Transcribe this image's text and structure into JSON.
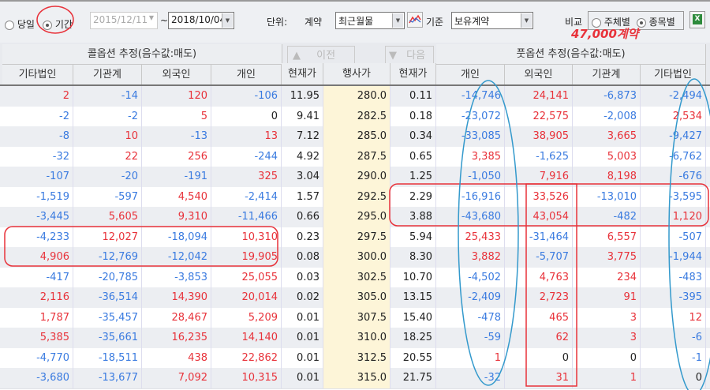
{
  "toolbar": {
    "today_label": "당일",
    "period_label": "기간",
    "start_date": "2015/12/11",
    "tilde": "~",
    "end_date": "2018/10/04",
    "unit_label": "단위:",
    "contract_label": "계약",
    "contract_value": "최근월물",
    "basis_label": "기준",
    "basis_value": "보유계약",
    "compare_label": "비교",
    "by_subject_label": "주체별",
    "by_item_label": "종목별",
    "period_selected": true,
    "by_item_selected": true
  },
  "nav": {
    "prev_label": "이전",
    "next_label": "다음"
  },
  "headers": {
    "call_group": "콜옵션 추정(음수값:매도)",
    "put_group": "풋옵션 추정(음수값:매도)",
    "call_cols": [
      "기타법인",
      "기관계",
      "외국인",
      "개인"
    ],
    "mid_cols": [
      "현재가",
      "행사가",
      "현재가"
    ],
    "put_cols": [
      "개인",
      "외국인",
      "기관계",
      "기타법인"
    ]
  },
  "annotation": {
    "text": "47,000계약"
  },
  "colors": {
    "positive": "#e8323a",
    "negative": "#3a7be0",
    "annotation_red": "#e8323a",
    "annotation_blue": "#3399cc"
  },
  "rows": [
    {
      "call": [
        "2",
        "-14",
        "120",
        "-106"
      ],
      "call_price": "11.95",
      "strike": "280.0",
      "put_price": "0.11",
      "put": [
        "-14,746",
        "24,141",
        "-6,873",
        "-2,494"
      ]
    },
    {
      "call": [
        "-2",
        "-2",
        "5",
        "0"
      ],
      "call_price": "9.41",
      "strike": "282.5",
      "put_price": "0.18",
      "put": [
        "-23,072",
        "22,575",
        "-2,008",
        "2,534"
      ]
    },
    {
      "call": [
        "-8",
        "10",
        "-13",
        "13"
      ],
      "call_price": "7.12",
      "strike": "285.0",
      "put_price": "0.34",
      "put": [
        "-33,085",
        "38,905",
        "3,665",
        "-9,427"
      ]
    },
    {
      "call": [
        "-32",
        "22",
        "256",
        "-244"
      ],
      "call_price": "4.92",
      "strike": "287.5",
      "put_price": "0.65",
      "put": [
        "3,385",
        "-1,625",
        "5,003",
        "-6,762"
      ]
    },
    {
      "call": [
        "-107",
        "-20",
        "-191",
        "325"
      ],
      "call_price": "3.04",
      "strike": "290.0",
      "put_price": "1.25",
      "put": [
        "-1,050",
        "7,916",
        "8,198",
        "-676"
      ]
    },
    {
      "call": [
        "-1,519",
        "-597",
        "4,540",
        "-2,414"
      ],
      "call_price": "1.57",
      "strike": "292.5",
      "put_price": "2.29",
      "put": [
        "-16,916",
        "33,526",
        "-13,010",
        "-3,595"
      ]
    },
    {
      "call": [
        "-3,445",
        "5,605",
        "9,310",
        "-11,466"
      ],
      "call_price": "0.66",
      "strike": "295.0",
      "put_price": "3.88",
      "put": [
        "-43,680",
        "43,054",
        "-482",
        "1,120"
      ]
    },
    {
      "call": [
        "-4,233",
        "12,027",
        "-18,094",
        "10,310"
      ],
      "call_price": "0.23",
      "strike": "297.5",
      "put_price": "5.94",
      "put": [
        "25,433",
        "-31,464",
        "6,557",
        "-507"
      ]
    },
    {
      "call": [
        "4,906",
        "-12,769",
        "-12,042",
        "19,905"
      ],
      "call_price": "0.08",
      "strike": "300.0",
      "put_price": "8.30",
      "put": [
        "3,882",
        "-5,707",
        "3,775",
        "-1,944"
      ]
    },
    {
      "call": [
        "-417",
        "-20,785",
        "-3,853",
        "25,055"
      ],
      "call_price": "0.03",
      "strike": "302.5",
      "put_price": "10.70",
      "put": [
        "-4,502",
        "4,763",
        "234",
        "-483"
      ]
    },
    {
      "call": [
        "2,116",
        "-36,514",
        "14,390",
        "20,014"
      ],
      "call_price": "0.02",
      "strike": "305.0",
      "put_price": "13.15",
      "put": [
        "-2,409",
        "2,723",
        "91",
        "-395"
      ]
    },
    {
      "call": [
        "1,787",
        "-35,457",
        "28,467",
        "5,209"
      ],
      "call_price": "0.01",
      "strike": "307.5",
      "put_price": "15.40",
      "put": [
        "-478",
        "465",
        "3",
        "12"
      ]
    },
    {
      "call": [
        "5,385",
        "-35,661",
        "16,235",
        "14,140"
      ],
      "call_price": "0.01",
      "strike": "310.0",
      "put_price": "18.25",
      "put": [
        "-59",
        "62",
        "3",
        "-6"
      ]
    },
    {
      "call": [
        "-4,770",
        "-18,511",
        "438",
        "22,862"
      ],
      "call_price": "0.01",
      "strike": "312.5",
      "put_price": "20.55",
      "put": [
        "1",
        "0",
        "0",
        "-1"
      ]
    },
    {
      "call": [
        "-3,680",
        "-13,677",
        "7,092",
        "10,315"
      ],
      "call_price": "0.01",
      "strike": "315.0",
      "put_price": "21.75",
      "put": [
        "-32",
        "31",
        "1",
        "0"
      ]
    }
  ]
}
